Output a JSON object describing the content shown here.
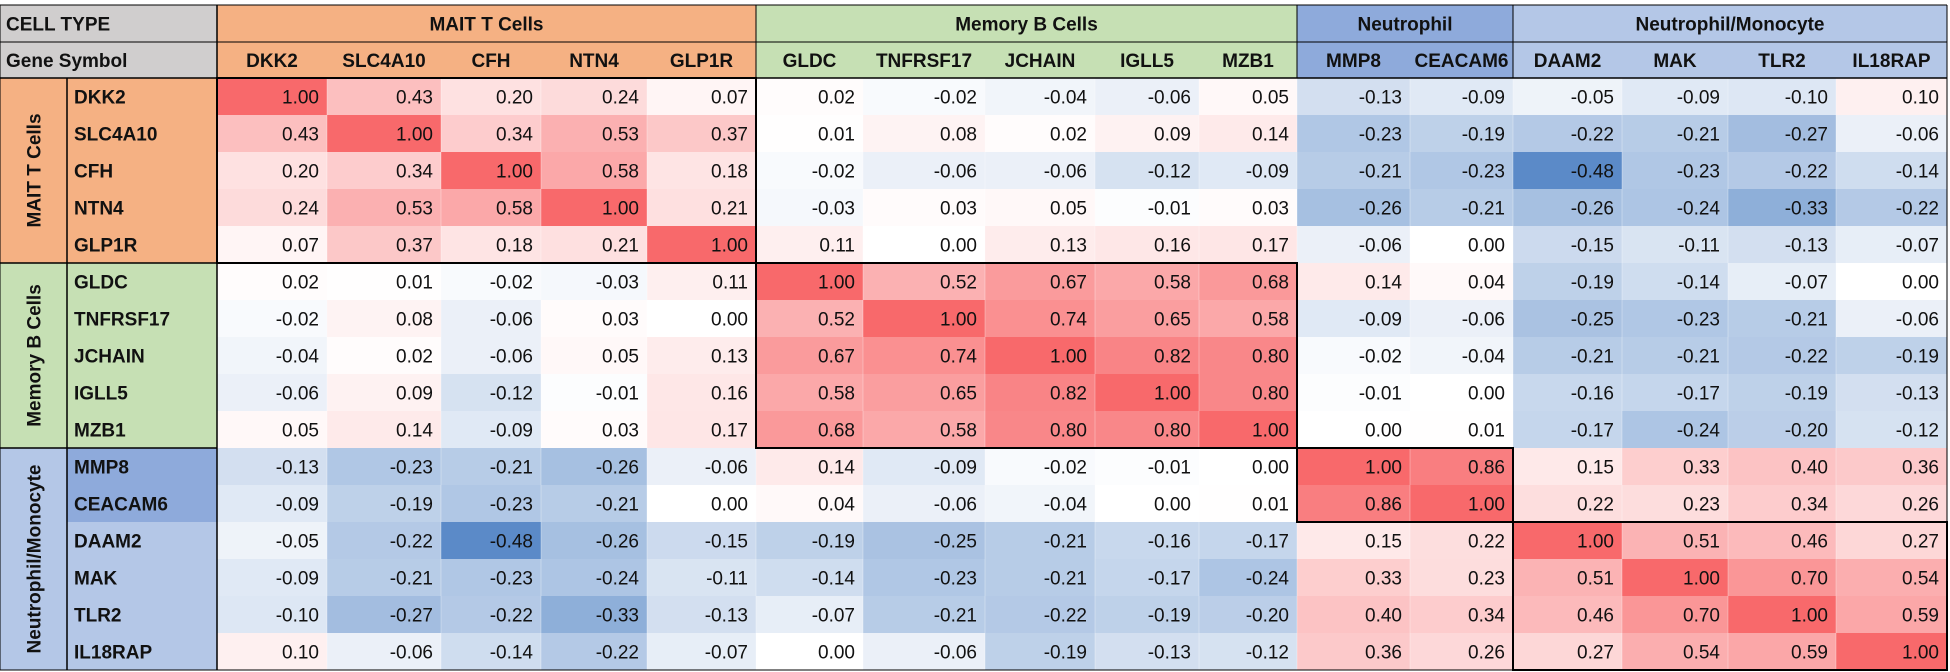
{
  "chart_data": {
    "type": "heatmap",
    "corner_labels": {
      "cell_type": "CELL TYPE",
      "gene_symbol": "Gene Symbol"
    },
    "column_groups": [
      {
        "label": "MAIT T Cells",
        "count": 5,
        "color": "#f5b183"
      },
      {
        "label": "Memory B Cells",
        "count": 5,
        "color": "#c6e0b4"
      },
      {
        "label": "Neutrophil",
        "count": 2,
        "color": "#8eaadb"
      },
      {
        "label": "Neutrophil/Monocyte",
        "count": 4,
        "color": "#b4c7e7"
      }
    ],
    "row_groups": [
      {
        "label": "MAIT T Cells",
        "count": 5,
        "color": "#f5b183"
      },
      {
        "label": "Memory B Cells",
        "count": 5,
        "color": "#c6e0b4"
      },
      {
        "label": "Neutrophil/Monocyte",
        "count": 6,
        "color": "#b4c7e7"
      }
    ],
    "row_label_colors": [
      "#f5b183",
      "#f5b183",
      "#f5b183",
      "#f5b183",
      "#f5b183",
      "#c6e0b4",
      "#c6e0b4",
      "#c6e0b4",
      "#c6e0b4",
      "#c6e0b4",
      "#8eaadb",
      "#8eaadb",
      "#b4c7e7",
      "#b4c7e7",
      "#b4c7e7",
      "#b4c7e7"
    ],
    "genes": [
      "DKK2",
      "SLC4A10",
      "CFH",
      "NTN4",
      "GLP1R",
      "GLDC",
      "TNFRSF17",
      "JCHAIN",
      "IGLL5",
      "MZB1",
      "MMP8",
      "CEACAM6",
      "DAAM2",
      "MAK",
      "TLR2",
      "IL18RAP"
    ],
    "values": [
      [
        "1.00",
        "0.43",
        "0.20",
        "0.24",
        "0.07",
        "0.02",
        "-0.02",
        "-0.04",
        "-0.06",
        "0.05",
        "-0.13",
        "-0.09",
        "-0.05",
        "-0.09",
        "-0.10",
        "0.10"
      ],
      [
        "0.43",
        "1.00",
        "0.34",
        "0.53",
        "0.37",
        "0.01",
        "0.08",
        "0.02",
        "0.09",
        "0.14",
        "-0.23",
        "-0.19",
        "-0.22",
        "-0.21",
        "-0.27",
        "-0.06"
      ],
      [
        "0.20",
        "0.34",
        "1.00",
        "0.58",
        "0.18",
        "-0.02",
        "-0.06",
        "-0.06",
        "-0.12",
        "-0.09",
        "-0.21",
        "-0.23",
        "-0.48",
        "-0.23",
        "-0.22",
        "-0.14"
      ],
      [
        "0.24",
        "0.53",
        "0.58",
        "1.00",
        "0.21",
        "-0.03",
        "0.03",
        "0.05",
        "-0.01",
        "0.03",
        "-0.26",
        "-0.21",
        "-0.26",
        "-0.24",
        "-0.33",
        "-0.22"
      ],
      [
        "0.07",
        "0.37",
        "0.18",
        "0.21",
        "1.00",
        "0.11",
        "0.00",
        "0.13",
        "0.16",
        "0.17",
        "-0.06",
        "0.00",
        "-0.15",
        "-0.11",
        "-0.13",
        "-0.07"
      ],
      [
        "0.02",
        "0.01",
        "-0.02",
        "-0.03",
        "0.11",
        "1.00",
        "0.52",
        "0.67",
        "0.58",
        "0.68",
        "0.14",
        "0.04",
        "-0.19",
        "-0.14",
        "-0.07",
        "0.00"
      ],
      [
        "-0.02",
        "0.08",
        "-0.06",
        "0.03",
        "0.00",
        "0.52",
        "1.00",
        "0.74",
        "0.65",
        "0.58",
        "-0.09",
        "-0.06",
        "-0.25",
        "-0.23",
        "-0.21",
        "-0.06"
      ],
      [
        "-0.04",
        "0.02",
        "-0.06",
        "0.05",
        "0.13",
        "0.67",
        "0.74",
        "1.00",
        "0.82",
        "0.80",
        "-0.02",
        "-0.04",
        "-0.21",
        "-0.21",
        "-0.22",
        "-0.19"
      ],
      [
        "-0.06",
        "0.09",
        "-0.12",
        "-0.01",
        "0.16",
        "0.58",
        "0.65",
        "0.82",
        "1.00",
        "0.80",
        "-0.01",
        "0.00",
        "-0.16",
        "-0.17",
        "-0.19",
        "-0.13"
      ],
      [
        "0.05",
        "0.14",
        "-0.09",
        "0.03",
        "0.17",
        "0.68",
        "0.58",
        "0.80",
        "0.80",
        "1.00",
        "0.00",
        "0.01",
        "-0.17",
        "-0.24",
        "-0.20",
        "-0.12"
      ],
      [
        "-0.13",
        "-0.23",
        "-0.21",
        "-0.26",
        "-0.06",
        "0.14",
        "-0.09",
        "-0.02",
        "-0.01",
        "0.00",
        "1.00",
        "0.86",
        "0.15",
        "0.33",
        "0.40",
        "0.36"
      ],
      [
        "-0.09",
        "-0.19",
        "-0.23",
        "-0.21",
        "0.00",
        "0.04",
        "-0.06",
        "-0.04",
        "0.00",
        "0.01",
        "0.86",
        "1.00",
        "0.22",
        "0.23",
        "0.34",
        "0.26"
      ],
      [
        "-0.05",
        "-0.22",
        "-0.48",
        "-0.26",
        "-0.15",
        "-0.19",
        "-0.25",
        "-0.21",
        "-0.16",
        "-0.17",
        "0.15",
        "0.22",
        "1.00",
        "0.51",
        "0.46",
        "0.27"
      ],
      [
        "-0.09",
        "-0.21",
        "-0.23",
        "-0.24",
        "-0.11",
        "-0.14",
        "-0.23",
        "-0.21",
        "-0.17",
        "-0.24",
        "0.33",
        "0.23",
        "0.51",
        "1.00",
        "0.70",
        "0.54"
      ],
      [
        "-0.10",
        "-0.27",
        "-0.22",
        "-0.33",
        "-0.13",
        "-0.07",
        "-0.21",
        "-0.22",
        "-0.19",
        "-0.20",
        "0.40",
        "0.34",
        "0.46",
        "0.70",
        "1.00",
        "0.59"
      ],
      [
        "0.10",
        "-0.06",
        "-0.14",
        "-0.22",
        "-0.07",
        "0.00",
        "-0.06",
        "-0.19",
        "-0.13",
        "-0.12",
        "0.36",
        "0.26",
        "0.27",
        "0.54",
        "0.59",
        "1.00"
      ]
    ],
    "color_scale": {
      "min": -0.48,
      "mid": 0.0,
      "max": 1.0,
      "min_color": "#5b8ac8",
      "mid_color": "#ffffff",
      "max_color": "#f8696b"
    },
    "header_bg": "#d0cece",
    "grid_on": true,
    "highlight_blocks": [
      [
        0,
        4
      ],
      [
        5,
        9
      ],
      [
        10,
        11
      ],
      [
        12,
        15
      ]
    ]
  }
}
